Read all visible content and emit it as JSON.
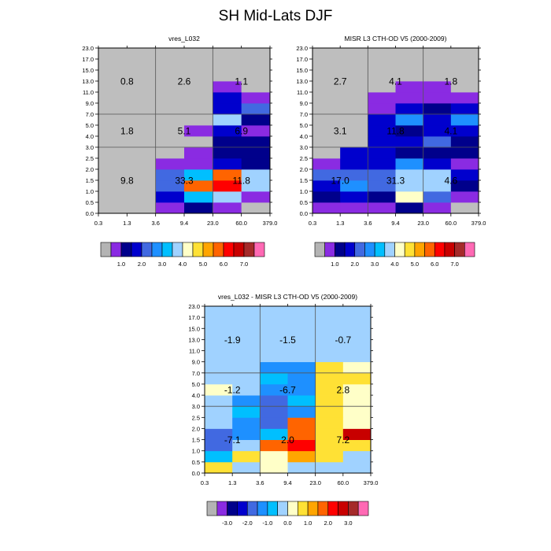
{
  "title": "SH Mid-Lats DJF",
  "palette": {
    "bins": [
      "#b4b4b4",
      "#8a2be2",
      "#00008b",
      "#0000cd",
      "#4169e1",
      "#1e90ff",
      "#00bfff",
      "#a0d2ff",
      "#ffffc8",
      "#ffe135",
      "#ffa500",
      "#ff6400",
      "#ff0000",
      "#c80000",
      "#a52a2a",
      "#ff69b4"
    ],
    "missing": "#bebebe"
  },
  "colorbars": [
    {
      "labels": [
        "1.0",
        "2.0",
        "3.0",
        "4.0",
        "5.0",
        "6.0",
        "7.0"
      ]
    },
    {
      "labels": [
        "1.0",
        "2.0",
        "3.0",
        "4.0",
        "5.0",
        "6.0",
        "7.0"
      ]
    },
    {
      "labels": [
        "-3.0",
        "-2.0",
        "-1.0",
        "0.0",
        "1.0",
        "2.0",
        "3.0"
      ]
    }
  ],
  "chart_data": [
    {
      "type": "heatmap",
      "title": "vres_L032",
      "x_ticks": [
        "0.3",
        "1.3",
        "3.6",
        "9.4",
        "23.0",
        "60.0",
        "379.0"
      ],
      "y_ticks": [
        "0.0",
        "0.5",
        "1.0",
        "1.5",
        "2.0",
        "2.5",
        "3.0",
        "4.0",
        "5.0",
        "7.0",
        "9.0",
        "11.0",
        "13.0",
        "15.0",
        "17.0",
        "23.0"
      ],
      "cells": [
        [
          "#bebebe",
          "#bebebe",
          "#bebebe",
          "#bebebe",
          "#bebebe",
          "#bebebe",
          "#bebebe",
          "#bebebe",
          "#bebebe",
          "#bebebe",
          "#bebebe",
          "#bebebe",
          "#bebebe",
          "#bebebe",
          "#bebebe"
        ],
        [
          "#bebebe",
          "#bebebe",
          "#bebebe",
          "#bebebe",
          "#bebebe",
          "#bebebe",
          "#bebebe",
          "#bebebe",
          "#bebebe",
          "#bebebe",
          "#bebebe",
          "#bebebe",
          "#bebebe",
          "#bebebe",
          "#bebebe"
        ],
        [
          "#8a2be2",
          "#0000cd",
          "#4169e1",
          "#4169e1",
          "#8a2be2",
          "#bebebe",
          "#bebebe",
          "#bebebe",
          "#bebebe",
          "#bebebe",
          "#bebebe",
          "#bebebe",
          "#bebebe",
          "#bebebe",
          "#bebebe"
        ],
        [
          "#00008b",
          "#00bfff",
          "#ff6400",
          "#00bfff",
          "#8a2be2",
          "#8a2be2",
          "#bebebe",
          "#8a2be2",
          "#bebebe",
          "#bebebe",
          "#bebebe",
          "#bebebe",
          "#bebebe",
          "#bebebe",
          "#bebebe"
        ],
        [
          "#8a2be2",
          "#a0d2ff",
          "#ff0000",
          "#ff6400",
          "#0000cd",
          "#00008b",
          "#00008b",
          "#0000cd",
          "#a0d2ff",
          "#0000cd",
          "#0000cd",
          "#8a2be2",
          "#bebebe",
          "#bebebe",
          "#bebebe"
        ],
        [
          "#bebebe",
          "#8a2be2",
          "#a0d2ff",
          "#a0d2ff",
          "#00008b",
          "#00008b",
          "#00008b",
          "#8a2be2",
          "#00008b",
          "#4169e1",
          "#8a2be2",
          "#bebebe",
          "#bebebe",
          "#bebebe",
          "#bebebe"
        ],
        [
          "#bebebe",
          "#bebebe",
          "#bebebe",
          "#bebebe",
          "#bebebe",
          "#bebebe",
          "#bebebe",
          "#8a2be2",
          "#bebebe",
          "#bebebe",
          "#bebebe",
          "#bebebe",
          "#bebebe",
          "#bebebe",
          "#bebebe"
        ]
      ],
      "labels": [
        {
          "text": "0.8",
          "xi": 0,
          "yi": 12
        },
        {
          "text": "2.6",
          "xi": 2,
          "yi": 12
        },
        {
          "text": "1.1",
          "xi": 4,
          "yi": 12
        },
        {
          "text": "1.8",
          "xi": 0,
          "yi": 7.5
        },
        {
          "text": "5.1",
          "xi": 2,
          "yi": 7.5
        },
        {
          "text": "6.9",
          "xi": 4,
          "yi": 7.5
        },
        {
          "text": "9.8",
          "xi": 0,
          "yi": 3
        },
        {
          "text": "33.3",
          "xi": 2,
          "yi": 3
        },
        {
          "text": "11.8",
          "xi": 4,
          "yi": 3
        }
      ]
    },
    {
      "type": "heatmap",
      "title": "MISR L3 CTH-OD V5 (2000-2009)",
      "x_ticks": [
        "0.3",
        "1.3",
        "3.6",
        "9.4",
        "23.0",
        "60.0",
        "379.0"
      ],
      "y_ticks": [
        "0.0",
        "0.5",
        "1.0",
        "1.5",
        "2.0",
        "2.5",
        "3.0",
        "4.0",
        "5.0",
        "7.0",
        "9.0",
        "11.0",
        "13.0",
        "15.0",
        "17.0",
        "23.0"
      ],
      "cells": [
        [
          "#8a2be2",
          "#00008b",
          "#0000cd",
          "#4169e1",
          "#8a2be2",
          "#bebebe",
          "#bebebe",
          "#bebebe",
          "#bebebe",
          "#bebebe",
          "#bebebe",
          "#bebebe",
          "#bebebe",
          "#bebebe",
          "#bebebe"
        ],
        [
          "#8a2be2",
          "#0000cd",
          "#1e90ff",
          "#4169e1",
          "#0000cd",
          "#0000cd",
          "#bebebe",
          "#bebebe",
          "#bebebe",
          "#bebebe",
          "#bebebe",
          "#bebebe",
          "#bebebe",
          "#bebebe",
          "#bebebe"
        ],
        [
          "#8a2be2",
          "#00008b",
          "#4169e1",
          "#4169e1",
          "#0000cd",
          "#0000cd",
          "#0000cd",
          "#0000cd",
          "#0000cd",
          "#8a2be2",
          "#8a2be2",
          "#bebebe",
          "#bebebe",
          "#bebebe",
          "#bebebe"
        ],
        [
          "#00008b",
          "#ffffc8",
          "#a0d2ff",
          "#a0d2ff",
          "#1e90ff",
          "#00008b",
          "#0000cd",
          "#00008b",
          "#1e90ff",
          "#0000cd",
          "#8a2be2",
          "#8a2be2",
          "#bebebe",
          "#bebebe",
          "#bebebe"
        ],
        [
          "#8a2be2",
          "#4169e1",
          "#a0d2ff",
          "#a0d2ff",
          "#0000cd",
          "#00008b",
          "#4169e1",
          "#0000cd",
          "#0000cd",
          "#00008b",
          "#8a2be2",
          "#8a2be2",
          "#bebebe",
          "#bebebe",
          "#bebebe"
        ],
        [
          "#bebebe",
          "#8a2be2",
          "#00008b",
          "#0000cd",
          "#8a2be2",
          "#00008b",
          "#00008b",
          "#0000cd",
          "#1e90ff",
          "#0000cd",
          "#8a2be2",
          "#bebebe",
          "#bebebe",
          "#bebebe",
          "#bebebe"
        ],
        [
          "#bebebe",
          "#bebebe",
          "#bebebe",
          "#bebebe",
          "#bebebe",
          "#bebebe",
          "#bebebe",
          "#bebebe",
          "#bebebe",
          "#bebebe",
          "#bebebe",
          "#bebebe",
          "#bebebe",
          "#bebebe",
          "#bebebe"
        ]
      ],
      "labels": [
        {
          "text": "2.7",
          "xi": 0,
          "yi": 12
        },
        {
          "text": "4.1",
          "xi": 2,
          "yi": 12
        },
        {
          "text": "1.8",
          "xi": 4,
          "yi": 12
        },
        {
          "text": "3.1",
          "xi": 0,
          "yi": 7.5
        },
        {
          "text": "11.8",
          "xi": 2,
          "yi": 7.5
        },
        {
          "text": "4.1",
          "xi": 4,
          "yi": 7.5
        },
        {
          "text": "17.0",
          "xi": 0,
          "yi": 3
        },
        {
          "text": "31.3",
          "xi": 2,
          "yi": 3
        },
        {
          "text": "4.6",
          "xi": 4,
          "yi": 3
        }
      ]
    },
    {
      "type": "heatmap",
      "title": "vres_L032 - MISR L3 CTH-OD V5 (2000-2009)",
      "x_ticks": [
        "0.3",
        "1.3",
        "3.6",
        "9.4",
        "23.0",
        "60.0",
        "379.0"
      ],
      "y_ticks": [
        "0.0",
        "0.5",
        "1.0",
        "1.5",
        "2.0",
        "2.5",
        "3.0",
        "4.0",
        "5.0",
        "7.0",
        "9.0",
        "11.0",
        "13.0",
        "15.0",
        "17.0",
        "23.0"
      ],
      "cells": [
        [
          "#ffe135",
          "#00bfff",
          "#4169e1",
          "#4169e1",
          "#a0d2ff",
          "#a0d2ff",
          "#a0d2ff",
          "#ffffc8",
          "#a0d2ff",
          "#a0d2ff",
          "#a0d2ff",
          "#a0d2ff",
          "#a0d2ff",
          "#a0d2ff",
          "#a0d2ff"
        ],
        [
          "#a0d2ff",
          "#ffe135",
          "#a0d2ff",
          "#1e90ff",
          "#1e90ff",
          "#00bfff",
          "#1e90ff",
          "#a0d2ff",
          "#a0d2ff",
          "#a0d2ff",
          "#a0d2ff",
          "#a0d2ff",
          "#a0d2ff",
          "#a0d2ff",
          "#a0d2ff"
        ],
        [
          "#ffffc8",
          "#ffffc8",
          "#ff6400",
          "#00bfff",
          "#4169e1",
          "#4169e1",
          "#4169e1",
          "#1e90ff",
          "#00bfff",
          "#1e90ff",
          "#a0d2ff",
          "#a0d2ff",
          "#a0d2ff",
          "#a0d2ff",
          "#a0d2ff"
        ],
        [
          "#a0d2ff",
          "#ffa500",
          "#ff0000",
          "#ff6400",
          "#ff6400",
          "#1e90ff",
          "#00bfff",
          "#1e90ff",
          "#1e90ff",
          "#1e90ff",
          "#a0d2ff",
          "#a0d2ff",
          "#a0d2ff",
          "#a0d2ff",
          "#a0d2ff"
        ],
        [
          "#a0d2ff",
          "#ffe135",
          "#ffe135",
          "#ffe135",
          "#ffe135",
          "#ffe135",
          "#ffe135",
          "#ffe135",
          "#ffe135",
          "#ffe135",
          "#a0d2ff",
          "#a0d2ff",
          "#a0d2ff",
          "#a0d2ff",
          "#a0d2ff"
        ],
        [
          "#a0d2ff",
          "#a0d2ff",
          "#ffe135",
          "#c80000",
          "#ffffc8",
          "#ffffc8",
          "#ffffc8",
          "#ffffc8",
          "#ffe135",
          "#ffffc8",
          "#a0d2ff",
          "#a0d2ff",
          "#a0d2ff",
          "#a0d2ff",
          "#a0d2ff"
        ],
        [
          "#a0d2ff",
          "#ffffc8",
          "#ffffc8",
          "#ffffc8",
          "#ffffc8",
          "#ffffc8",
          "#ffffc8",
          "#ffffc8",
          "#ffffc8",
          "#ffffc8",
          "#a0d2ff",
          "#a0d2ff",
          "#a0d2ff",
          "#a0d2ff",
          "#a0d2ff"
        ]
      ],
      "labels": [
        {
          "text": "-1.9",
          "xi": 0,
          "yi": 12
        },
        {
          "text": "-1.5",
          "xi": 2,
          "yi": 12
        },
        {
          "text": "-0.7",
          "xi": 4,
          "yi": 12
        },
        {
          "text": "-1.2",
          "xi": 0,
          "yi": 7.5
        },
        {
          "text": "-6.7",
          "xi": 2,
          "yi": 7.5
        },
        {
          "text": "2.8",
          "xi": 4,
          "yi": 7.5
        },
        {
          "text": "-7.1",
          "xi": 0,
          "yi": 3
        },
        {
          "text": "2.0",
          "xi": 2,
          "yi": 3
        },
        {
          "text": "7.2",
          "xi": 4,
          "yi": 3
        }
      ]
    }
  ]
}
